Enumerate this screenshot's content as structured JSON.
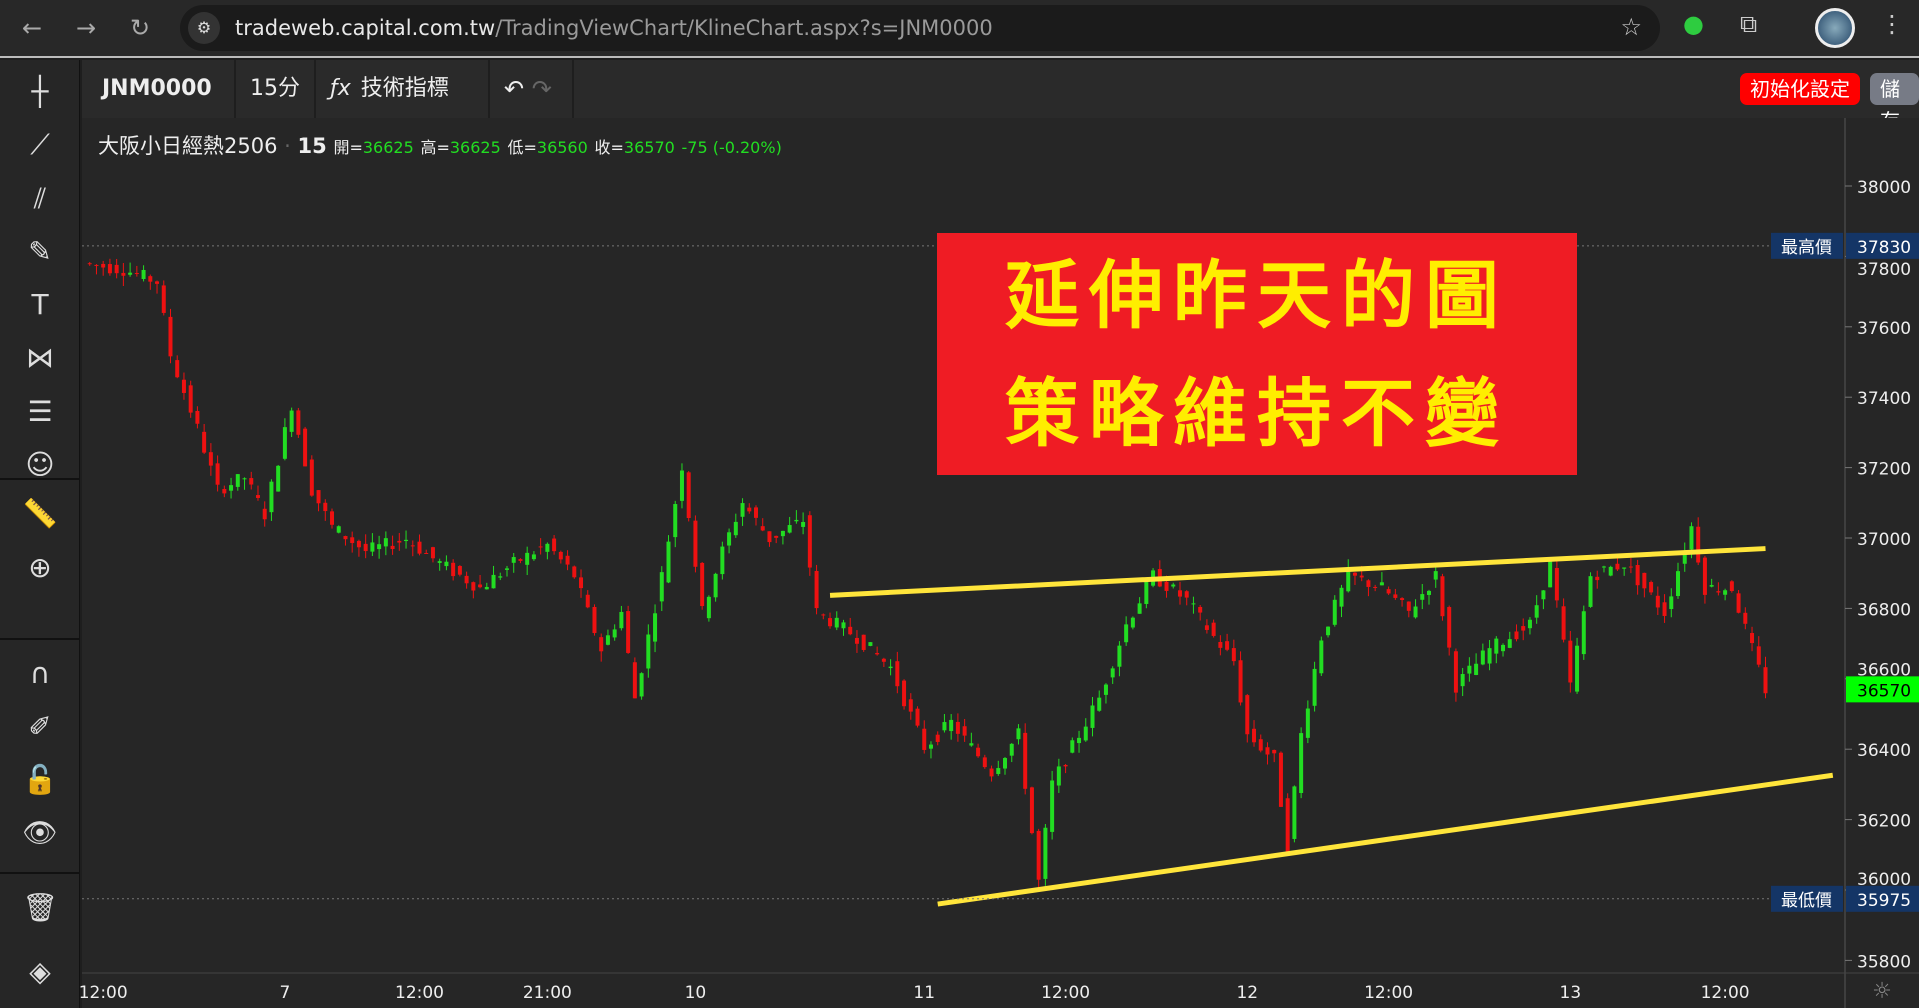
{
  "browser": {
    "url_host": "tradeweb.capital.com.tw",
    "url_path": "/TradingViewChart/KlineChart.aspx?s=JNM0000"
  },
  "toolbar": {
    "symbol": "JNM0000",
    "interval": "15分",
    "indicators_label": "技術指標",
    "reset_label": "初始化設定",
    "save_label": "儲存"
  },
  "legend": {
    "name": "大阪小日經熱2506",
    "interval": "15",
    "open_label": "開=",
    "open": "36625",
    "high_label": "高=",
    "high": "36625",
    "low_label": "低=",
    "low": "36560",
    "close_label": "收=",
    "close": "36570",
    "change": "-75 (-0.20%)"
  },
  "overlay": {
    "line1": "延伸昨天的圖",
    "line2": "策略維持不變",
    "bg_color": "#ef1c24",
    "text_color": "#ffee00"
  },
  "colors": {
    "up": "#22dd22",
    "down": "#ee1111",
    "trendline": "#ffe53b",
    "last_price_bg": "#00ff00",
    "marker_bg": "#143566"
  },
  "chart_data": {
    "type": "candlestick",
    "ylim": [
      35760,
      38100
    ],
    "y_ticks": [
      38000,
      37800,
      37600,
      37400,
      37200,
      37000,
      36800,
      36600,
      36400,
      36200,
      36000,
      35800
    ],
    "x_ticks": [
      {
        "bar": 3,
        "label": "12:00"
      },
      {
        "bar": 30,
        "label": "7"
      },
      {
        "bar": 50,
        "label": "12:00"
      },
      {
        "bar": 69,
        "label": "21:00"
      },
      {
        "bar": 91,
        "label": "10"
      },
      {
        "bar": 125,
        "label": "11"
      },
      {
        "bar": 146,
        "label": "12:00"
      },
      {
        "bar": 173,
        "label": "12"
      },
      {
        "bar": 194,
        "label": "12:00"
      },
      {
        "bar": 221,
        "label": "13"
      },
      {
        "bar": 244,
        "label": "12:00"
      }
    ],
    "close_path": [
      [
        0,
        37781
      ],
      [
        6,
        37763
      ],
      [
        11,
        37728
      ],
      [
        13,
        37520
      ],
      [
        17,
        37311
      ],
      [
        20,
        37137
      ],
      [
        24,
        37172
      ],
      [
        27,
        37067
      ],
      [
        31,
        37380
      ],
      [
        34,
        37137
      ],
      [
        37,
        37032
      ],
      [
        42,
        36963
      ],
      [
        48,
        36997
      ],
      [
        53,
        36928
      ],
      [
        59,
        36858
      ],
      [
        64,
        36928
      ],
      [
        69,
        36980
      ],
      [
        73,
        36893
      ],
      [
        77,
        36684
      ],
      [
        80,
        36789
      ],
      [
        82,
        36545
      ],
      [
        86,
        36893
      ],
      [
        89,
        37206
      ],
      [
        92,
        36789
      ],
      [
        95,
        36963
      ],
      [
        98,
        37102
      ],
      [
        102,
        36997
      ],
      [
        107,
        37050
      ],
      [
        109,
        36789
      ],
      [
        115,
        36719
      ],
      [
        120,
        36632
      ],
      [
        125,
        36406
      ],
      [
        129,
        36475
      ],
      [
        135,
        36336
      ],
      [
        139,
        36441
      ],
      [
        142,
        36023
      ],
      [
        144,
        36301
      ],
      [
        148,
        36441
      ],
      [
        151,
        36545
      ],
      [
        155,
        36754
      ],
      [
        159,
        36893
      ],
      [
        164,
        36823
      ],
      [
        168,
        36719
      ],
      [
        171,
        36650
      ],
      [
        173,
        36441
      ],
      [
        177,
        36371
      ],
      [
        179,
        36127
      ],
      [
        181,
        36441
      ],
      [
        184,
        36719
      ],
      [
        188,
        36893
      ],
      [
        193,
        36858
      ],
      [
        197,
        36789
      ],
      [
        201,
        36893
      ],
      [
        204,
        36580
      ],
      [
        209,
        36684
      ],
      [
        215,
        36754
      ],
      [
        218,
        36928
      ],
      [
        221,
        36580
      ],
      [
        224,
        36893
      ],
      [
        229,
        36928
      ],
      [
        235,
        36789
      ],
      [
        239,
        37032
      ],
      [
        241,
        36858
      ],
      [
        245,
        36858
      ],
      [
        248,
        36684
      ],
      [
        250,
        36570
      ]
    ],
    "high_marker": {
      "label": "最高價",
      "value": "37830",
      "price": 37830
    },
    "low_marker": {
      "label": "最低價",
      "value": "35975",
      "price": 35975
    },
    "last_price": {
      "value": "36570",
      "price": 36570
    },
    "trendlines": [
      {
        "from": [
          111,
          36837
        ],
        "to": [
          250,
          36970
        ]
      },
      {
        "from": [
          127,
          35960
        ],
        "to": [
          260,
          36326
        ]
      }
    ]
  }
}
